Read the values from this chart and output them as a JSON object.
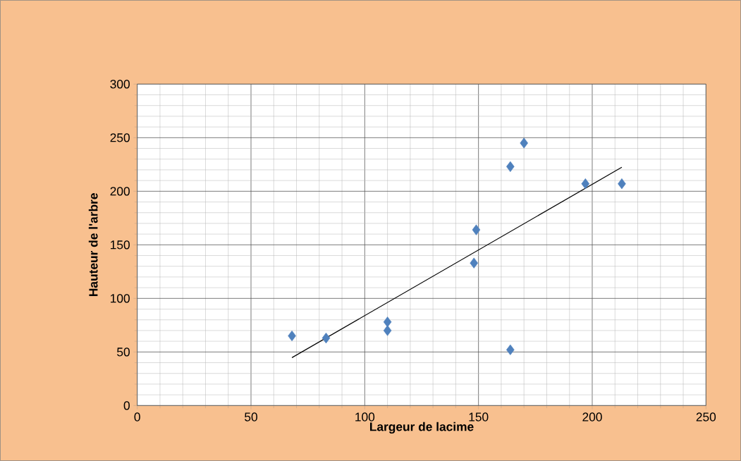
{
  "chart_data": {
    "type": "scatter",
    "xlabel": "Largeur de lacime",
    "ylabel": "Hauteur de l'arbre",
    "xlim": [
      0,
      250
    ],
    "ylim": [
      0,
      300
    ],
    "xticks": [
      0,
      50,
      100,
      150,
      200,
      250
    ],
    "yticks": [
      0,
      50,
      100,
      150,
      200,
      250,
      300
    ],
    "grid": true,
    "series": [
      {
        "marker": "diamond",
        "color": "#4f81bd",
        "x": [
          68,
          83,
          110,
          110,
          148,
          149,
          164,
          170,
          164,
          197,
          213
        ],
        "values": [
          65,
          63,
          78,
          70,
          133,
          164,
          223,
          245,
          52,
          207,
          207
        ]
      },
      {
        "type": "line",
        "color": "#000000",
        "x": [
          68,
          213
        ],
        "values": [
          44.7,
          222.4
        ]
      }
    ]
  }
}
